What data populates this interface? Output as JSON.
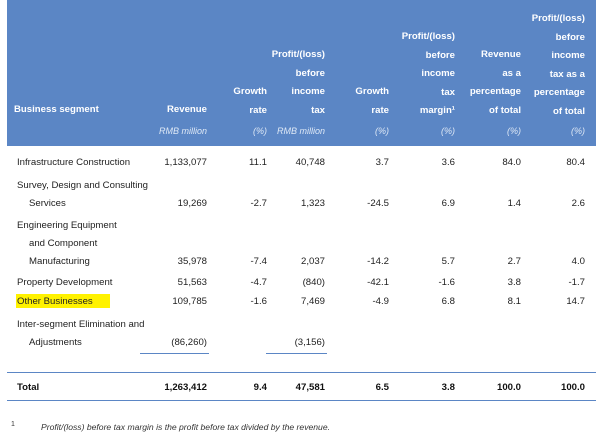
{
  "headers": {
    "segment": "Business segment",
    "revenue": "Revenue",
    "growth1": "Growth\nrate",
    "profit": "Profit/(loss)\nbefore\nincome\ntax",
    "growth2": "Growth\nrate",
    "margin": "Profit/(loss)\nbefore\nincome\ntax\nmargin¹",
    "rev_pct": "Revenue\nas a\npercentage\nof total",
    "profit_pct": "Profit/(loss)\nbefore\nincome\ntax as a\npercentage\nof total"
  },
  "units": {
    "revenue": "RMB million",
    "growth1": "(%)",
    "profit": "RMB million",
    "growth2": "(%)",
    "margin": "(%)",
    "rev_pct": "(%)",
    "profit_pct": "(%)"
  },
  "rows": [
    {
      "label_lines": [
        "Infrastructure Construction"
      ],
      "revenue": "1,133,077",
      "growth1": "11.1",
      "profit": "40,748",
      "growth2": "3.7",
      "margin": "3.6",
      "rev_pct": "84.0",
      "profit_pct": "80.4"
    },
    {
      "label_lines": [
        "Survey, Design and Consulting",
        "Services"
      ],
      "revenue": "19,269",
      "growth1": "-2.7",
      "profit": "1,323",
      "growth2": "-24.5",
      "margin": "6.9",
      "rev_pct": "1.4",
      "profit_pct": "2.6"
    },
    {
      "label_lines": [
        "Engineering Equipment",
        "and Component",
        "Manufacturing"
      ],
      "revenue": "35,978",
      "growth1": "-7.4",
      "profit": "2,037",
      "growth2": "-14.2",
      "margin": "5.7",
      "rev_pct": "2.7",
      "profit_pct": "4.0"
    },
    {
      "label_lines": [
        "Property Development"
      ],
      "revenue": "51,563",
      "growth1": "-4.7",
      "profit": "(840)",
      "growth2": "-42.1",
      "margin": "-1.6",
      "rev_pct": "3.8",
      "profit_pct": "-1.7"
    },
    {
      "label_lines": [
        "Other Businesses"
      ],
      "revenue": "109,785",
      "growth1": "-1.6",
      "profit": "7,469",
      "growth2": "-4.9",
      "margin": "6.8",
      "rev_pct": "8.1",
      "profit_pct": "14.7"
    },
    {
      "label_lines": [
        "Inter-segment Elimination and",
        "Adjustments"
      ],
      "revenue": "(86,260)",
      "growth1": "",
      "profit": "(3,156)",
      "growth2": "",
      "margin": "",
      "rev_pct": "",
      "profit_pct": ""
    }
  ],
  "total": {
    "label": "Total",
    "revenue": "1,263,412",
    "growth1": "9.4",
    "profit": "47,581",
    "growth2": "6.5",
    "margin": "3.8",
    "rev_pct": "100.0",
    "profit_pct": "100.0"
  },
  "footnote": {
    "mark": "1",
    "text": "Profit/(loss) before tax margin is the profit before tax divided by the revenue."
  },
  "colors": {
    "header_band": "#5b86c5",
    "highlight": "#fff200"
  }
}
